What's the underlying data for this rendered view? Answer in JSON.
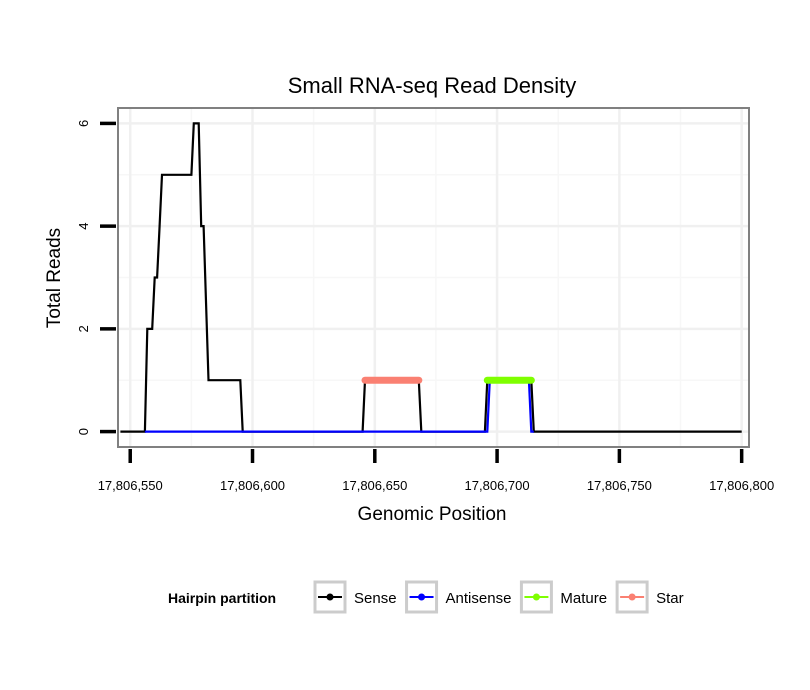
{
  "chart_data": {
    "type": "line",
    "title": "Small RNA-seq Read Density",
    "xlabel": "Genomic Position",
    "ylabel": "Total Reads",
    "xlim": [
      17806545,
      17806803
    ],
    "ylim": [
      -0.3,
      6.3
    ],
    "x_ticks": [
      17806550,
      17806600,
      17806650,
      17806700,
      17806750,
      17806800
    ],
    "x_tick_labels": [
      "17,806,550",
      "17,806,600",
      "17,806,650",
      "17,806,700",
      "17,806,750",
      "17,806,800"
    ],
    "y_ticks": [
      0,
      2,
      4,
      6
    ],
    "y_tick_labels": [
      "0",
      "2",
      "4",
      "6"
    ],
    "grid": true,
    "series": [
      {
        "name": "Sense",
        "color": "#000000",
        "style": "step-line",
        "points": [
          [
            17806546,
            0
          ],
          [
            17806556,
            0
          ],
          [
            17806557,
            2
          ],
          [
            17806559,
            2
          ],
          [
            17806560,
            3
          ],
          [
            17806561,
            3
          ],
          [
            17806562,
            4
          ],
          [
            17806563,
            5
          ],
          [
            17806575,
            5
          ],
          [
            17806576,
            6
          ],
          [
            17806578,
            6
          ],
          [
            17806579,
            4
          ],
          [
            17806580,
            4
          ],
          [
            17806582,
            1
          ],
          [
            17806595,
            1
          ],
          [
            17806596,
            0
          ],
          [
            17806645,
            0
          ],
          [
            17806646,
            1
          ],
          [
            17806668,
            1
          ],
          [
            17806669,
            0
          ],
          [
            17806695,
            0
          ],
          [
            17806696,
            1
          ],
          [
            17806714,
            1
          ],
          [
            17806715,
            0
          ],
          [
            17806800,
            0
          ]
        ]
      },
      {
        "name": "Antisense",
        "color": "#0000ff",
        "style": "step-line",
        "points": [
          [
            17806556,
            0
          ],
          [
            17806696,
            0
          ],
          [
            17806697,
            1
          ],
          [
            17806713,
            1
          ],
          [
            17806714,
            0
          ],
          [
            17806715,
            0
          ]
        ]
      },
      {
        "name": "Mature",
        "color": "#7fff00",
        "style": "segment",
        "points": [
          [
            17806696,
            1
          ],
          [
            17806714,
            1
          ]
        ]
      },
      {
        "name": "Star",
        "color": "#fa8072",
        "style": "segment",
        "points": [
          [
            17806646,
            1
          ],
          [
            17806668,
            1
          ]
        ]
      }
    ],
    "legend": {
      "title": "Hairpin partition",
      "position": "bottom",
      "items": [
        {
          "label": "Sense",
          "color": "#000000"
        },
        {
          "label": "Antisense",
          "color": "#0000ff"
        },
        {
          "label": "Mature",
          "color": "#7fff00"
        },
        {
          "label": "Star",
          "color": "#fa8072"
        }
      ]
    }
  }
}
